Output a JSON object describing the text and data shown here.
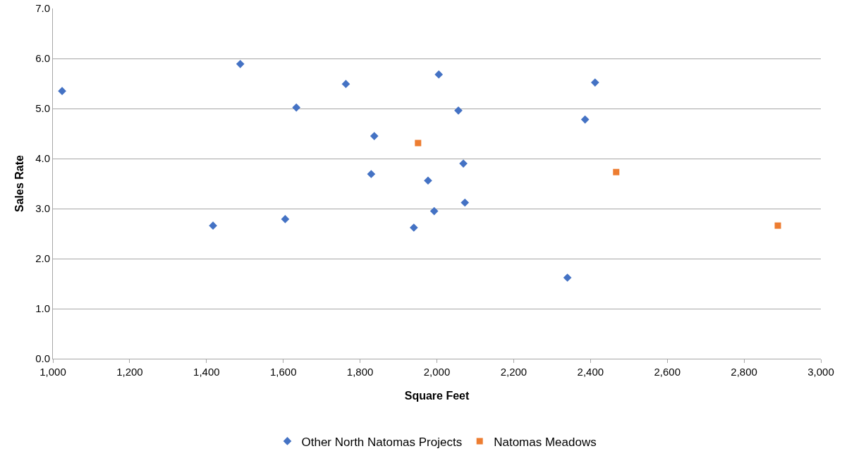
{
  "chart_data": {
    "type": "scatter",
    "xlabel": "Square Feet",
    "ylabel": "Sales Rate",
    "xlim": [
      1000,
      3000
    ],
    "xticks": [
      {
        "value": 1000,
        "label": "1,000"
      },
      {
        "value": 1200,
        "label": "1,200"
      },
      {
        "value": 1400,
        "label": "1,400"
      },
      {
        "value": 1600,
        "label": "1,600"
      },
      {
        "value": 1800,
        "label": "1,800"
      },
      {
        "value": 2000,
        "label": "2,000"
      },
      {
        "value": 2200,
        "label": "2,200"
      },
      {
        "value": 2400,
        "label": "2,400"
      },
      {
        "value": 2600,
        "label": "2,600"
      },
      {
        "value": 2800,
        "label": "2,800"
      },
      {
        "value": 3000,
        "label": "3,000"
      }
    ],
    "ylim": [
      0,
      7
    ],
    "yticks": [
      {
        "value": 0,
        "label": "0.0"
      },
      {
        "value": 1,
        "label": "1.0"
      },
      {
        "value": 2,
        "label": "2.0"
      },
      {
        "value": 3,
        "label": "3.0"
      },
      {
        "value": 4,
        "label": "4.0"
      },
      {
        "value": 5,
        "label": "5.0"
      },
      {
        "value": 6,
        "label": "6.0"
      },
      {
        "value": 7,
        "label": "7.0"
      }
    ],
    "grid": "y",
    "legend": "bottom",
    "series": [
      {
        "name": "Other North Natomas Projects",
        "color": "#4472c4",
        "marker": "diamond",
        "x": [
          1024,
          1488,
          1417,
          1634,
          1605,
          1763,
          1837,
          1829,
          1940,
          1977,
          1993,
          2005,
          2056,
          2069,
          2073,
          2340,
          2386,
          2412
        ],
        "values": [
          5.35,
          5.89,
          2.66,
          5.02,
          2.79,
          5.49,
          4.45,
          3.69,
          2.62,
          3.56,
          2.95,
          5.68,
          4.96,
          3.9,
          3.12,
          1.62,
          4.78,
          5.52
        ]
      },
      {
        "name": "Natomas Meadows",
        "color": "#ed7d31",
        "marker": "square",
        "x": [
          1951,
          2467,
          2888
        ],
        "values": [
          4.31,
          3.73,
          2.66
        ]
      }
    ]
  }
}
